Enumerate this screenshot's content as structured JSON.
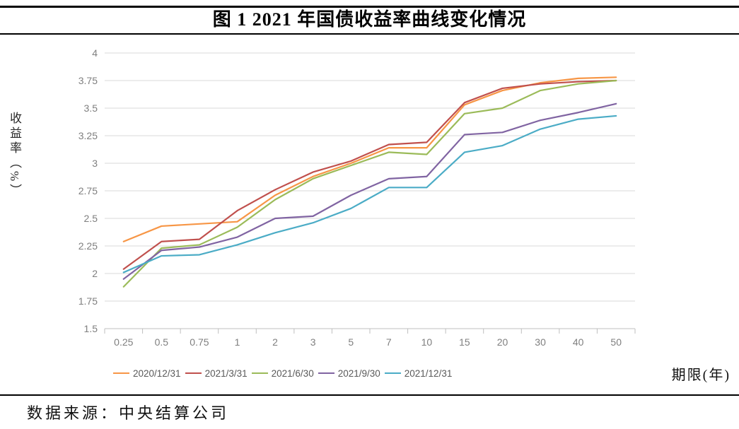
{
  "title": "图 1 2021 年国债收益率曲线变化情况",
  "source_text": "数据来源：中央结算公司",
  "chart_data": {
    "type": "line",
    "title": "图 1 2021 年国债收益率曲线变化情况",
    "x_axis_title": "期限(年)",
    "y_axis_title": "收益率（%）",
    "categories": [
      "0.25",
      "0.5",
      "0.75",
      "1",
      "2",
      "3",
      "5",
      "7",
      "10",
      "15",
      "20",
      "30",
      "40",
      "50"
    ],
    "ylim": [
      1.5,
      4
    ],
    "ytick_step": 0.25,
    "ytick_labels": [
      "1.5",
      "1.75",
      "2",
      "2.25",
      "2.5",
      "2.75",
      "3",
      "3.25",
      "3.5",
      "3.75",
      "4"
    ],
    "grid": "horizontal-only",
    "legend_position": "bottom",
    "gridline_color": "#D9D9D9",
    "axis_line_color": "#BFBFBF",
    "tick_text_color": "#7F7F7F",
    "legend_text_color": "#595959",
    "series": [
      {
        "name": "2020/12/31",
        "color": "#F79646",
        "values": [
          2.29,
          2.43,
          2.45,
          2.47,
          2.71,
          2.88,
          3.0,
          3.14,
          3.14,
          3.53,
          3.66,
          3.73,
          3.77,
          3.78
        ]
      },
      {
        "name": "2021/3/31",
        "color": "#C0504D",
        "values": [
          2.04,
          2.29,
          2.31,
          2.57,
          2.76,
          2.92,
          3.02,
          3.17,
          3.19,
          3.55,
          3.68,
          3.72,
          3.74,
          3.75
        ]
      },
      {
        "name": "2021/6/30",
        "color": "#9BBB59",
        "values": [
          1.88,
          2.23,
          2.26,
          2.42,
          2.67,
          2.86,
          2.98,
          3.1,
          3.08,
          3.45,
          3.5,
          3.66,
          3.72,
          3.75
        ]
      },
      {
        "name": "2021/9/30",
        "color": "#8064A2",
        "values": [
          1.95,
          2.21,
          2.24,
          2.33,
          2.5,
          2.52,
          2.71,
          2.86,
          2.88,
          3.26,
          3.28,
          3.39,
          3.46,
          3.54
        ]
      },
      {
        "name": "2021/12/31",
        "color": "#4BACC6",
        "values": [
          2.01,
          2.16,
          2.17,
          2.26,
          2.37,
          2.46,
          2.59,
          2.78,
          2.78,
          3.1,
          3.16,
          3.31,
          3.4,
          3.43
        ]
      }
    ]
  }
}
